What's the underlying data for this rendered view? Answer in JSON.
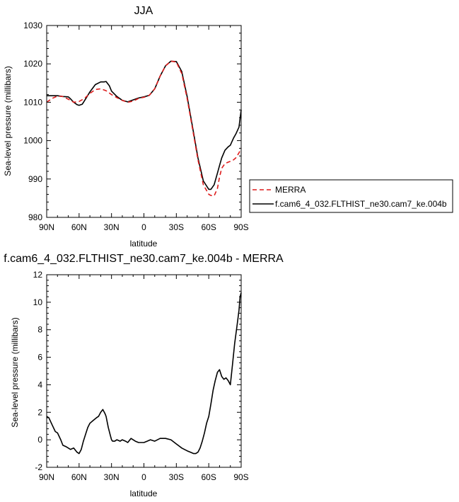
{
  "chart_data": [
    {
      "type": "line",
      "title": "JJA",
      "xlabel": "latitude",
      "ylabel": "Sea-level pressure (millibars)",
      "xlim": [
        90,
        -90
      ],
      "ylim": [
        980,
        1030
      ],
      "x_ticks": [
        90,
        60,
        30,
        0,
        -30,
        -60,
        -90
      ],
      "x_tick_labels": [
        "90N",
        "60N",
        "30N",
        "0",
        "30S",
        "60S",
        "90S"
      ],
      "y_ticks": [
        980,
        990,
        1000,
        1010,
        1020,
        1030
      ],
      "y_tick_labels": [
        "980",
        "990",
        "1000",
        "1010",
        "1020",
        "1030"
      ],
      "legend_position": "right",
      "series": [
        {
          "name": "MERRA",
          "color": "#dd1c1c",
          "dash": "dashed",
          "x": [
            90,
            85,
            80,
            75,
            70,
            65,
            60,
            55,
            50,
            45,
            40,
            35,
            30,
            25,
            20,
            15,
            10,
            5,
            0,
            -5,
            -10,
            -15,
            -20,
            -25,
            -30,
            -35,
            -40,
            -45,
            -50,
            -55,
            -60,
            -62,
            -65,
            -68,
            -70,
            -72,
            -75,
            -78,
            -80,
            -83,
            -85,
            -88,
            -90
          ],
          "y": [
            1010.0,
            1011.0,
            1011.6,
            1011.5,
            1010.8,
            1010.0,
            1010.2,
            1011.0,
            1012.3,
            1013.3,
            1013.5,
            1013.0,
            1012.0,
            1011.2,
            1010.5,
            1010.0,
            1010.3,
            1011.0,
            1011.3,
            1011.8,
            1013.5,
            1016.8,
            1019.5,
            1020.7,
            1020.5,
            1017.5,
            1011.0,
            1003.0,
            995.0,
            988.5,
            986.0,
            985.7,
            985.6,
            987.5,
            990.5,
            992.8,
            994.0,
            994.4,
            994.6,
            995.0,
            995.5,
            996.8,
            998.0
          ]
        },
        {
          "name": "f.cam6_4_032.FLTHIST_ne30.cam7_ke.004b",
          "color": "#000000",
          "dash": "solid",
          "x": [
            90,
            85,
            80,
            75,
            70,
            68,
            65,
            62,
            60,
            57,
            55,
            50,
            45,
            40,
            37,
            35,
            32,
            30,
            25,
            20,
            15,
            10,
            5,
            0,
            -5,
            -10,
            -15,
            -20,
            -25,
            -30,
            -35,
            -40,
            -45,
            -50,
            -55,
            -60,
            -62,
            -65,
            -68,
            -70,
            -72,
            -75,
            -78,
            -80,
            -83,
            -85,
            -88,
            -90
          ],
          "y": [
            1011.7,
            1011.7,
            1011.7,
            1011.5,
            1011.4,
            1010.9,
            1010.0,
            1009.4,
            1009.2,
            1009.5,
            1010.4,
            1012.7,
            1014.6,
            1015.3,
            1015.3,
            1015.4,
            1014.3,
            1012.9,
            1011.5,
            1010.5,
            1010.1,
            1010.6,
            1011.1,
            1011.4,
            1011.8,
            1013.5,
            1016.8,
            1019.5,
            1020.7,
            1020.6,
            1018.0,
            1011.5,
            1003.5,
            995.5,
            989.5,
            987.3,
            987.3,
            988.5,
            991.5,
            993.5,
            995.5,
            997.5,
            998.4,
            998.8,
            1000.7,
            1001.7,
            1003.5,
            1008.0
          ]
        }
      ]
    },
    {
      "type": "line",
      "title": "f.cam6_4_032.FLTHIST_ne30.cam7_ke.004b - MERRA",
      "xlabel": "latitude",
      "ylabel": "Sea-level pressure (millibars)",
      "xlim": [
        90,
        -90
      ],
      "ylim": [
        -2,
        12
      ],
      "x_ticks": [
        90,
        60,
        30,
        0,
        -30,
        -60,
        -90
      ],
      "x_tick_labels": [
        "90N",
        "60N",
        "30N",
        "0",
        "30S",
        "60S",
        "90S"
      ],
      "y_ticks": [
        -2,
        0,
        2,
        4,
        6,
        8,
        10,
        12
      ],
      "y_tick_labels": [
        "-2",
        "0",
        "2",
        "4",
        "6",
        "8",
        "10",
        "12"
      ],
      "series": [
        {
          "color": "#000000",
          "dash": "solid",
          "x": [
            90,
            88,
            85,
            82,
            80,
            77,
            75,
            72,
            70,
            68,
            65,
            62,
            60,
            58,
            56,
            54,
            52,
            50,
            47,
            44,
            42,
            40,
            38,
            36,
            35,
            33,
            31,
            30,
            29,
            28,
            27,
            25,
            22,
            20,
            17,
            15,
            12,
            10,
            8,
            5,
            2,
            0,
            -3,
            -6,
            -10,
            -15,
            -20,
            -25,
            -30,
            -35,
            -40,
            -43,
            -46,
            -48,
            -50,
            -52,
            -54,
            -56,
            -58,
            -60,
            -62,
            -64,
            -66,
            -68,
            -70,
            -72,
            -74,
            -76,
            -78,
            -80,
            -82,
            -84,
            -86,
            -88,
            -89,
            -90
          ],
          "y": [
            1.7,
            1.6,
            1.1,
            0.6,
            0.5,
            0.0,
            -0.4,
            -0.5,
            -0.6,
            -0.7,
            -0.6,
            -0.9,
            -1.0,
            -0.7,
            -0.1,
            0.4,
            0.9,
            1.2,
            1.4,
            1.6,
            1.7,
            2.0,
            2.2,
            1.9,
            1.7,
            0.9,
            0.3,
            0.0,
            -0.1,
            -0.1,
            -0.1,
            0.0,
            -0.1,
            0.0,
            -0.1,
            -0.2,
            0.1,
            0.0,
            -0.1,
            -0.2,
            -0.2,
            -0.2,
            -0.1,
            0.0,
            -0.1,
            0.1,
            0.1,
            0.0,
            -0.3,
            -0.6,
            -0.8,
            -0.9,
            -1.0,
            -1.0,
            -0.9,
            -0.6,
            -0.1,
            0.5,
            1.2,
            1.7,
            2.6,
            3.6,
            4.3,
            4.9,
            5.1,
            4.6,
            4.4,
            4.5,
            4.3,
            4.0,
            5.5,
            7.0,
            8.2,
            9.4,
            10.4,
            10.7
          ]
        }
      ]
    }
  ]
}
